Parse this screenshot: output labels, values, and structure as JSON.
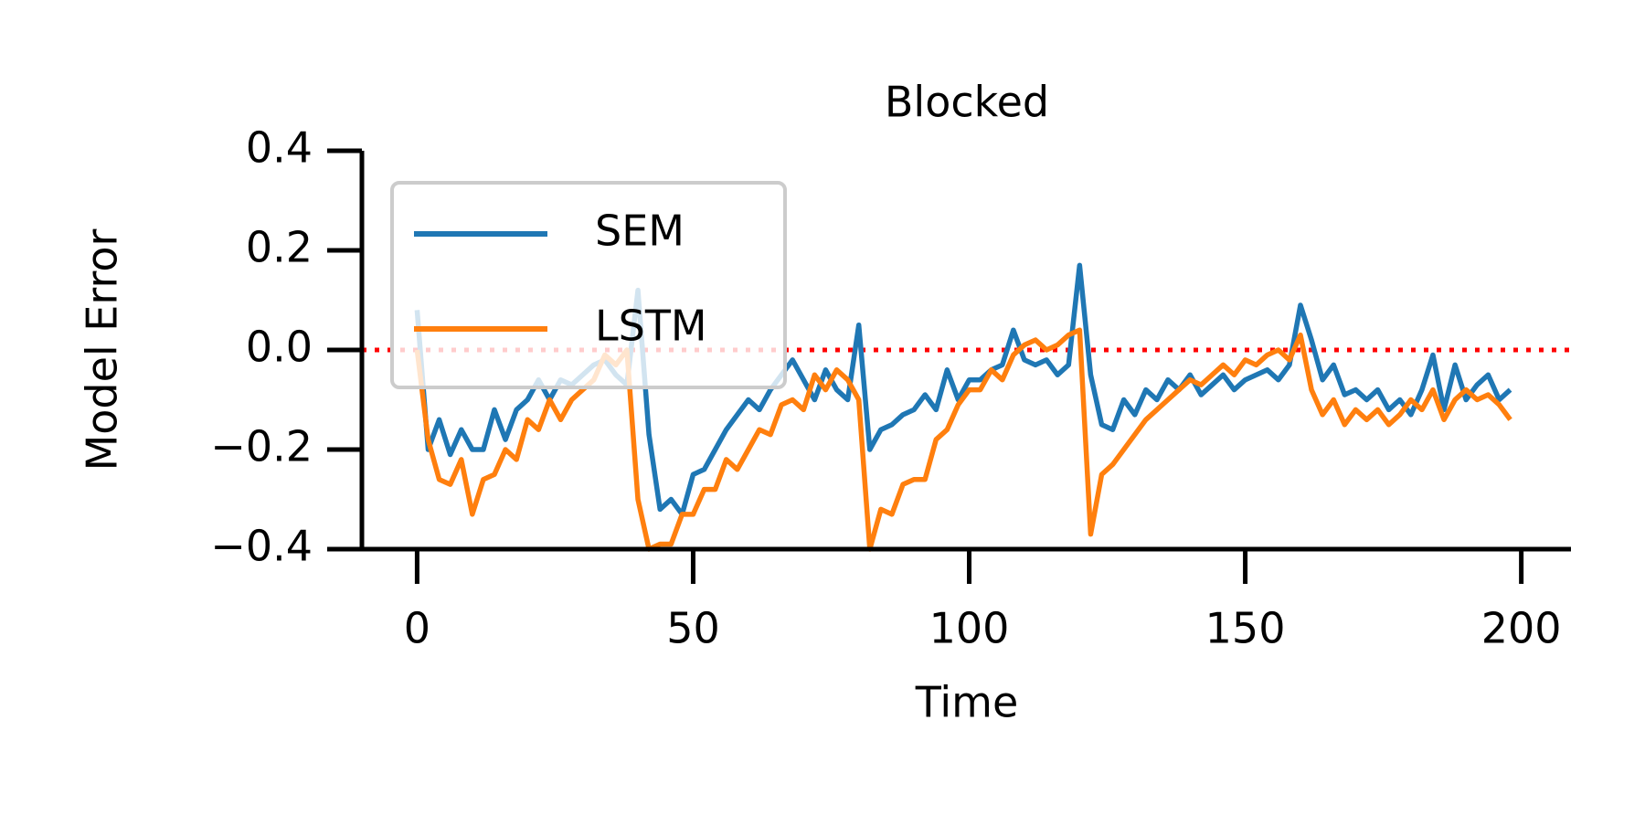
{
  "chart_data": {
    "type": "line",
    "title": "Blocked",
    "x_label": "Time",
    "y_label": "Model Error",
    "x": [
      0,
      2,
      4,
      6,
      8,
      10,
      12,
      14,
      16,
      18,
      20,
      22,
      24,
      26,
      28,
      30,
      32,
      34,
      36,
      38,
      40,
      42,
      44,
      46,
      48,
      50,
      52,
      54,
      56,
      58,
      60,
      62,
      64,
      66,
      68,
      70,
      72,
      74,
      76,
      78,
      80,
      82,
      84,
      86,
      88,
      90,
      92,
      94,
      96,
      98,
      100,
      102,
      104,
      106,
      108,
      110,
      112,
      114,
      116,
      118,
      120,
      122,
      124,
      126,
      128,
      130,
      132,
      134,
      136,
      138,
      140,
      142,
      144,
      146,
      148,
      150,
      152,
      154,
      156,
      158,
      160,
      162,
      164,
      166,
      168,
      170,
      172,
      174,
      176,
      178,
      180,
      182,
      184,
      186,
      188,
      190,
      192,
      194,
      196,
      198
    ],
    "series": [
      {
        "name": "SEM",
        "color": "#1f77b4",
        "values": [
          0.08,
          -0.2,
          -0.14,
          -0.21,
          -0.16,
          -0.2,
          -0.2,
          -0.12,
          -0.18,
          -0.12,
          -0.1,
          -0.06,
          -0.1,
          -0.06,
          -0.07,
          -0.05,
          -0.03,
          -0.02,
          -0.05,
          -0.07,
          0.12,
          -0.17,
          -0.32,
          -0.3,
          -0.33,
          -0.25,
          -0.24,
          -0.2,
          -0.16,
          -0.13,
          -0.1,
          -0.12,
          -0.08,
          -0.05,
          -0.02,
          -0.06,
          -0.1,
          -0.04,
          -0.08,
          -0.1,
          0.05,
          -0.2,
          -0.16,
          -0.15,
          -0.13,
          -0.12,
          -0.09,
          -0.12,
          -0.04,
          -0.1,
          -0.06,
          -0.06,
          -0.04,
          -0.03,
          0.04,
          -0.02,
          -0.03,
          -0.02,
          -0.05,
          -0.03,
          0.17,
          -0.05,
          -0.15,
          -0.16,
          -0.1,
          -0.13,
          -0.08,
          -0.1,
          -0.06,
          -0.08,
          -0.05,
          -0.09,
          -0.07,
          -0.05,
          -0.08,
          -0.06,
          -0.05,
          -0.04,
          -0.06,
          -0.03,
          0.09,
          0.02,
          -0.06,
          -0.03,
          -0.09,
          -0.08,
          -0.1,
          -0.08,
          -0.12,
          -0.1,
          -0.13,
          -0.08,
          -0.01,
          -0.12,
          -0.03,
          -0.1,
          -0.07,
          -0.05,
          -0.1,
          -0.08
        ]
      },
      {
        "name": "LSTM",
        "color": "#ff7f0e",
        "values": [
          0.0,
          -0.18,
          -0.26,
          -0.27,
          -0.22,
          -0.33,
          -0.26,
          -0.25,
          -0.2,
          -0.22,
          -0.14,
          -0.16,
          -0.1,
          -0.14,
          -0.1,
          -0.08,
          -0.06,
          -0.01,
          -0.03,
          0.0,
          -0.3,
          -0.4,
          -0.39,
          -0.39,
          -0.33,
          -0.33,
          -0.28,
          -0.28,
          -0.22,
          -0.24,
          -0.2,
          -0.16,
          -0.17,
          -0.11,
          -0.1,
          -0.12,
          -0.05,
          -0.08,
          -0.04,
          -0.06,
          -0.1,
          -0.4,
          -0.32,
          -0.33,
          -0.27,
          -0.26,
          -0.26,
          -0.18,
          -0.16,
          -0.11,
          -0.08,
          -0.08,
          -0.04,
          -0.06,
          -0.01,
          0.01,
          0.02,
          0.0,
          0.01,
          0.03,
          0.04,
          -0.37,
          -0.25,
          -0.23,
          -0.2,
          -0.17,
          -0.14,
          -0.12,
          -0.1,
          -0.08,
          -0.06,
          -0.07,
          -0.05,
          -0.03,
          -0.05,
          -0.02,
          -0.03,
          -0.01,
          0.0,
          -0.02,
          0.03,
          -0.08,
          -0.13,
          -0.1,
          -0.15,
          -0.12,
          -0.14,
          -0.12,
          -0.15,
          -0.13,
          -0.1,
          -0.12,
          -0.08,
          -0.14,
          -0.1,
          -0.08,
          -0.1,
          -0.09,
          -0.11,
          -0.14
        ]
      }
    ],
    "xlim": [
      -10,
      209
    ],
    "ylim": [
      -0.4,
      0.4
    ],
    "xticks": [
      0,
      50,
      100,
      150,
      200
    ],
    "yticks": [
      {
        "value": -0.4,
        "label": "−0.4"
      },
      {
        "value": -0.2,
        "label": "−0.2"
      },
      {
        "value": 0,
        "label": "0.0"
      },
      0.2,
      0.4
    ],
    "reference_line": {
      "value": 0,
      "color": "#ff0000"
    },
    "legend": "upper left"
  }
}
